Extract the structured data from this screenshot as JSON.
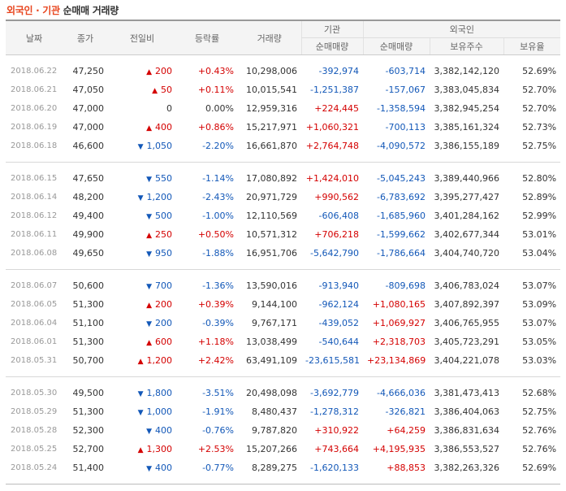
{
  "title": {
    "part1": "외국인 · 기관",
    "part2": "순매매 거래량"
  },
  "headers": {
    "date": "날짜",
    "close": "종가",
    "change": "전일비",
    "rate": "등락률",
    "volume": "거래량",
    "institution": "기관",
    "foreign": "외국인",
    "inst_net": "순매매량",
    "for_net": "순매매량",
    "holdings": "보유주수",
    "ratio": "보유율"
  },
  "groups": [
    [
      {
        "date": "2018.06.22",
        "close": "47,250",
        "dir": "up",
        "change": "200",
        "rate": "+0.43%",
        "volume": "10,298,006",
        "inst": "-392,974",
        "frn": "-603,714",
        "hold": "3,382,142,120",
        "ratio": "52.69%"
      },
      {
        "date": "2018.06.21",
        "close": "47,050",
        "dir": "up",
        "change": "50",
        "rate": "+0.11%",
        "volume": "10,015,541",
        "inst": "-1,251,387",
        "frn": "-157,067",
        "hold": "3,383,045,834",
        "ratio": "52.70%"
      },
      {
        "date": "2018.06.20",
        "close": "47,000",
        "dir": "none",
        "change": "0",
        "rate": "0.00%",
        "volume": "12,959,316",
        "inst": "+224,445",
        "frn": "-1,358,594",
        "hold": "3,382,945,254",
        "ratio": "52.70%"
      },
      {
        "date": "2018.06.19",
        "close": "47,000",
        "dir": "up",
        "change": "400",
        "rate": "+0.86%",
        "volume": "15,217,971",
        "inst": "+1,060,321",
        "frn": "-700,113",
        "hold": "3,385,161,324",
        "ratio": "52.73%"
      },
      {
        "date": "2018.06.18",
        "close": "46,600",
        "dir": "down",
        "change": "1,050",
        "rate": "-2.20%",
        "volume": "16,661,870",
        "inst": "+2,764,748",
        "frn": "-4,090,572",
        "hold": "3,386,155,189",
        "ratio": "52.75%"
      }
    ],
    [
      {
        "date": "2018.06.15",
        "close": "47,650",
        "dir": "down",
        "change": "550",
        "rate": "-1.14%",
        "volume": "17,080,892",
        "inst": "+1,424,010",
        "frn": "-5,045,243",
        "hold": "3,389,440,966",
        "ratio": "52.80%"
      },
      {
        "date": "2018.06.14",
        "close": "48,200",
        "dir": "down",
        "change": "1,200",
        "rate": "-2.43%",
        "volume": "20,971,729",
        "inst": "+990,562",
        "frn": "-6,783,692",
        "hold": "3,395,277,427",
        "ratio": "52.89%"
      },
      {
        "date": "2018.06.12",
        "close": "49,400",
        "dir": "down",
        "change": "500",
        "rate": "-1.00%",
        "volume": "12,110,569",
        "inst": "-606,408",
        "frn": "-1,685,960",
        "hold": "3,401,284,162",
        "ratio": "52.99%"
      },
      {
        "date": "2018.06.11",
        "close": "49,900",
        "dir": "up",
        "change": "250",
        "rate": "+0.50%",
        "volume": "10,571,312",
        "inst": "+706,218",
        "frn": "-1,599,662",
        "hold": "3,402,677,344",
        "ratio": "53.01%"
      },
      {
        "date": "2018.06.08",
        "close": "49,650",
        "dir": "down",
        "change": "950",
        "rate": "-1.88%",
        "volume": "16,951,706",
        "inst": "-5,642,790",
        "frn": "-1,786,664",
        "hold": "3,404,740,720",
        "ratio": "53.04%"
      }
    ],
    [
      {
        "date": "2018.06.07",
        "close": "50,600",
        "dir": "down",
        "change": "700",
        "rate": "-1.36%",
        "volume": "13,590,016",
        "inst": "-913,940",
        "frn": "-809,698",
        "hold": "3,406,783,024",
        "ratio": "53.07%"
      },
      {
        "date": "2018.06.05",
        "close": "51,300",
        "dir": "up",
        "change": "200",
        "rate": "+0.39%",
        "volume": "9,144,100",
        "inst": "-962,124",
        "frn": "+1,080,165",
        "hold": "3,407,892,397",
        "ratio": "53.09%"
      },
      {
        "date": "2018.06.04",
        "close": "51,100",
        "dir": "down",
        "change": "200",
        "rate": "-0.39%",
        "volume": "9,767,171",
        "inst": "-439,052",
        "frn": "+1,069,927",
        "hold": "3,406,765,955",
        "ratio": "53.07%"
      },
      {
        "date": "2018.06.01",
        "close": "51,300",
        "dir": "up",
        "change": "600",
        "rate": "+1.18%",
        "volume": "13,038,499",
        "inst": "-540,644",
        "frn": "+2,318,703",
        "hold": "3,405,723,291",
        "ratio": "53.05%"
      },
      {
        "date": "2018.05.31",
        "close": "50,700",
        "dir": "up",
        "change": "1,200",
        "rate": "+2.42%",
        "volume": "63,491,109",
        "inst": "-23,615,581",
        "frn": "+23,134,869",
        "hold": "3,404,221,078",
        "ratio": "53.03%"
      }
    ],
    [
      {
        "date": "2018.05.30",
        "close": "49,500",
        "dir": "down",
        "change": "1,800",
        "rate": "-3.51%",
        "volume": "20,498,098",
        "inst": "-3,692,779",
        "frn": "-4,666,036",
        "hold": "3,381,473,413",
        "ratio": "52.68%"
      },
      {
        "date": "2018.05.29",
        "close": "51,300",
        "dir": "down",
        "change": "1,000",
        "rate": "-1.91%",
        "volume": "8,480,437",
        "inst": "-1,278,312",
        "frn": "-326,821",
        "hold": "3,386,404,063",
        "ratio": "52.75%"
      },
      {
        "date": "2018.05.28",
        "close": "52,300",
        "dir": "down",
        "change": "400",
        "rate": "-0.76%",
        "volume": "9,787,820",
        "inst": "+310,922",
        "frn": "+64,259",
        "hold": "3,386,831,634",
        "ratio": "52.76%"
      },
      {
        "date": "2018.05.25",
        "close": "52,700",
        "dir": "up",
        "change": "1,300",
        "rate": "+2.53%",
        "volume": "15,207,266",
        "inst": "+743,664",
        "frn": "+4,195,935",
        "hold": "3,386,553,527",
        "ratio": "52.76%"
      },
      {
        "date": "2018.05.24",
        "close": "51,400",
        "dir": "down",
        "change": "400",
        "rate": "-0.77%",
        "volume": "8,289,275",
        "inst": "-1,620,133",
        "frn": "+88,853",
        "hold": "3,382,263,326",
        "ratio": "52.69%"
      }
    ]
  ],
  "colors": {
    "up": "#d40000",
    "down": "#1358b8",
    "title_accent": "#e8451e"
  },
  "icons": {
    "up": "triangle-up-icon",
    "down": "triangle-down-icon"
  }
}
